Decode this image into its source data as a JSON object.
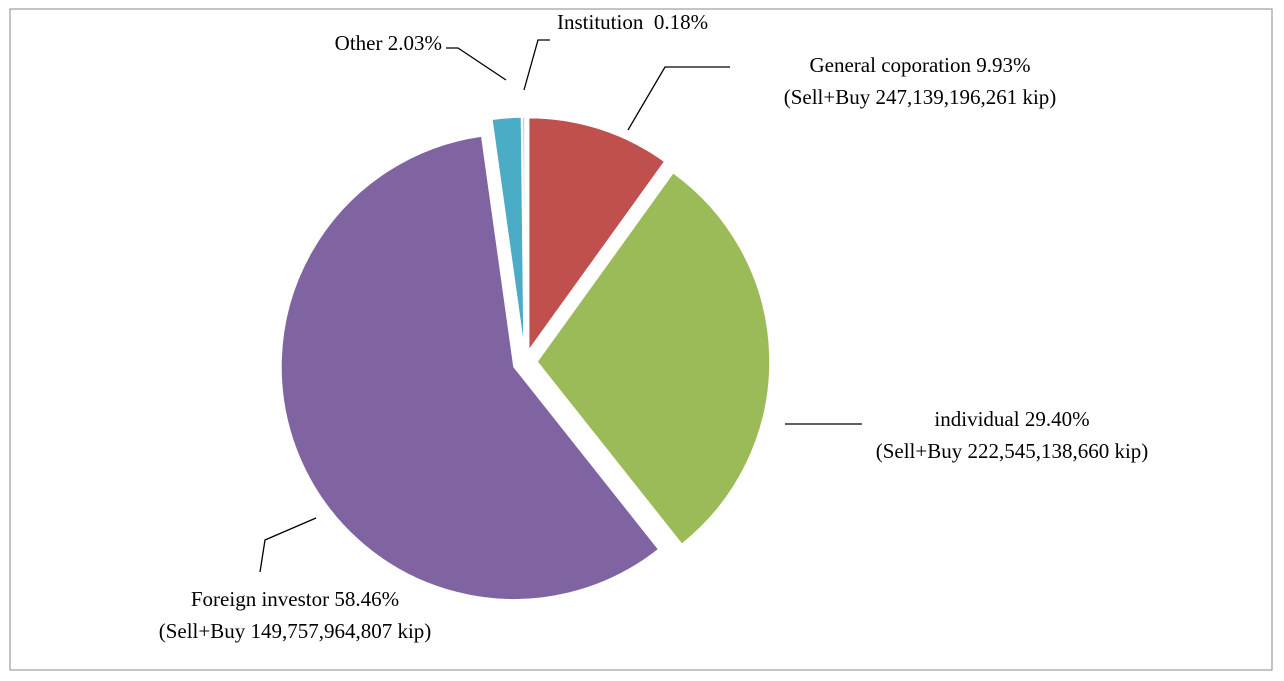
{
  "chart_data": {
    "type": "pie",
    "categories": [
      "General coporation",
      "individual",
      "Foreign investor",
      "Other",
      "Institution"
    ],
    "values": [
      9.93,
      29.4,
      58.46,
      2.03,
      0.18
    ],
    "value_labels": [
      "9.93%",
      "29.40%",
      "58.46%",
      "2.03%",
      "0.18%"
    ],
    "details": [
      "(Sell+Buy 247,139,196,261 kip)",
      "(Sell+Buy 222,545,138,660 kip)",
      "(Sell+Buy 149,757,964,807 kip)",
      null,
      null
    ],
    "colors": [
      "#c0504d",
      "#9bbb59",
      "#8064a2",
      "#4bacc6",
      "#b8cce4"
    ],
    "exploded": true
  }
}
